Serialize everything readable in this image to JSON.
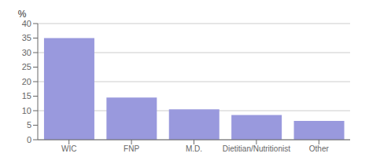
{
  "chart_data": {
    "type": "bar",
    "ylabel": "%",
    "categories": [
      "WIC",
      "FNP",
      "M.D.",
      "Dietitian/Nutritionist",
      "Other"
    ],
    "values": [
      35,
      14.5,
      10.5,
      8.5,
      6.5
    ],
    "color": "#9999dd",
    "ylim": [
      0,
      40
    ],
    "yticks": [
      0,
      5,
      10,
      15,
      20,
      25,
      30,
      35,
      40
    ],
    "grid": true
  }
}
